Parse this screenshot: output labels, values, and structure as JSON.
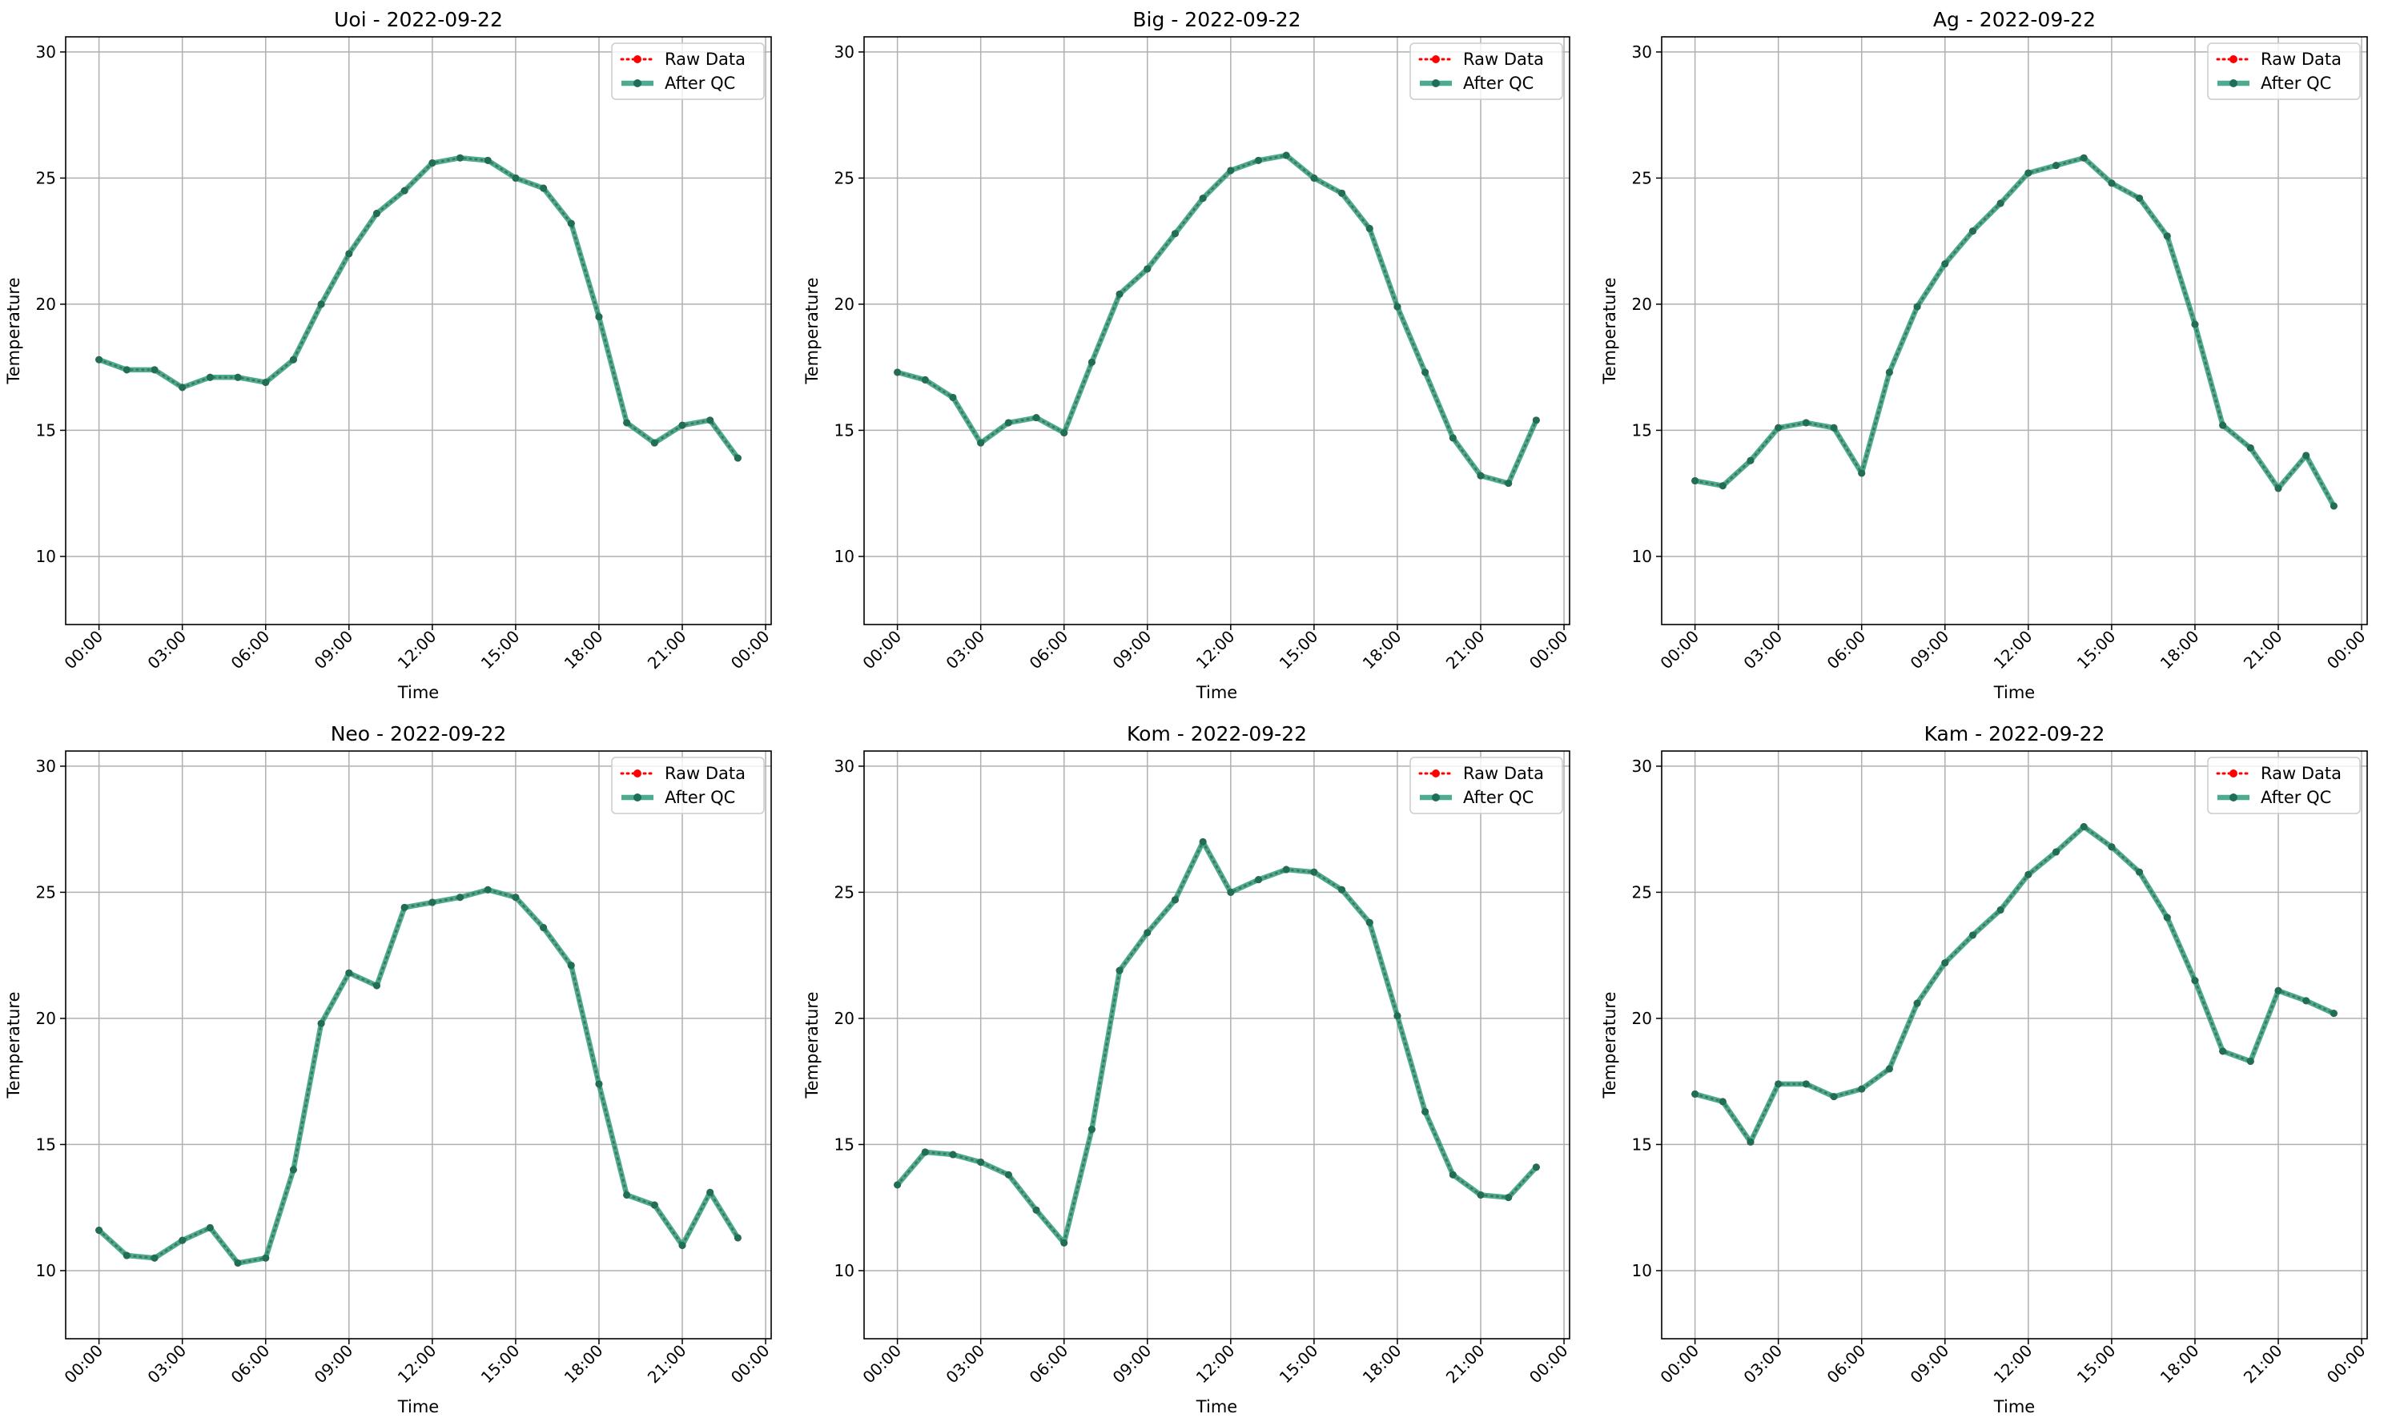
{
  "figure": {
    "colors": {
      "raw": "#ff0000",
      "qc": "#2e9e7c",
      "qc_marker": "#1f6e57",
      "grid": "#b0b0b0",
      "axis": "#000000"
    }
  },
  "chart_data": [
    {
      "type": "line",
      "title": "Uoi - 2022-09-22",
      "xlabel": "Time",
      "ylabel": "Temperature",
      "x_tick_labels": [
        "00:00",
        "03:00",
        "06:00",
        "09:00",
        "12:00",
        "15:00",
        "18:00",
        "21:00",
        "00:00"
      ],
      "y_ticks": [
        10,
        15,
        20,
        25,
        30
      ],
      "xlim_hours": [
        -1.2,
        24.2
      ],
      "ylim": [
        7.3,
        30.6
      ],
      "grid": true,
      "legend": "top-right",
      "x_hours": [
        0,
        1,
        2,
        3,
        4,
        5,
        6,
        7,
        8,
        9,
        10,
        11,
        12,
        13,
        14,
        15,
        16,
        17,
        18,
        19,
        20,
        21,
        22,
        23
      ],
      "series": [
        {
          "name": "Raw Data",
          "values": [
            17.8,
            17.4,
            17.4,
            16.7,
            17.1,
            17.1,
            16.9,
            17.8,
            20.0,
            22.0,
            23.6,
            24.5,
            25.6,
            25.8,
            25.7,
            25.0,
            24.6,
            23.2,
            19.5,
            15.3,
            14.5,
            15.2,
            15.4,
            13.9
          ]
        },
        {
          "name": "After QC",
          "values": [
            17.8,
            17.4,
            17.4,
            16.7,
            17.1,
            17.1,
            16.9,
            17.8,
            20.0,
            22.0,
            23.6,
            24.5,
            25.6,
            25.8,
            25.7,
            25.0,
            24.6,
            23.2,
            19.5,
            15.3,
            14.5,
            15.2,
            15.4,
            13.9
          ]
        }
      ]
    },
    {
      "type": "line",
      "title": "Big - 2022-09-22",
      "xlabel": "Time",
      "ylabel": "Temperature",
      "x_tick_labels": [
        "00:00",
        "03:00",
        "06:00",
        "09:00",
        "12:00",
        "15:00",
        "18:00",
        "21:00",
        "00:00"
      ],
      "y_ticks": [
        10,
        15,
        20,
        25,
        30
      ],
      "xlim_hours": [
        -1.2,
        24.2
      ],
      "ylim": [
        7.3,
        30.6
      ],
      "grid": true,
      "legend": "top-right",
      "x_hours": [
        0,
        1,
        2,
        3,
        4,
        5,
        6,
        7,
        8,
        9,
        10,
        11,
        12,
        13,
        14,
        15,
        16,
        17,
        18,
        19,
        20,
        21,
        22,
        23
      ],
      "series": [
        {
          "name": "Raw Data",
          "values": [
            17.3,
            17.0,
            16.3,
            14.5,
            15.3,
            15.5,
            14.9,
            17.7,
            20.4,
            21.4,
            22.8,
            24.2,
            25.3,
            25.7,
            25.9,
            25.0,
            24.4,
            23.0,
            19.9,
            17.3,
            14.7,
            13.2,
            12.9,
            15.4
          ]
        },
        {
          "name": "After QC",
          "values": [
            17.3,
            17.0,
            16.3,
            14.5,
            15.3,
            15.5,
            14.9,
            17.7,
            20.4,
            21.4,
            22.8,
            24.2,
            25.3,
            25.7,
            25.9,
            25.0,
            24.4,
            23.0,
            19.9,
            17.3,
            14.7,
            13.2,
            12.9,
            15.4
          ]
        }
      ]
    },
    {
      "type": "line",
      "title": "Ag - 2022-09-22",
      "xlabel": "Time",
      "ylabel": "Temperature",
      "x_tick_labels": [
        "00:00",
        "03:00",
        "06:00",
        "09:00",
        "12:00",
        "15:00",
        "18:00",
        "21:00",
        "00:00"
      ],
      "y_ticks": [
        10,
        15,
        20,
        25,
        30
      ],
      "xlim_hours": [
        -1.2,
        24.2
      ],
      "ylim": [
        7.3,
        30.6
      ],
      "grid": true,
      "legend": "top-right",
      "x_hours": [
        0,
        1,
        2,
        3,
        4,
        5,
        6,
        7,
        8,
        9,
        10,
        11,
        12,
        13,
        14,
        15,
        16,
        17,
        18,
        19,
        20,
        21,
        22,
        23
      ],
      "series": [
        {
          "name": "Raw Data",
          "values": [
            13.0,
            12.8,
            13.8,
            15.1,
            15.3,
            15.1,
            13.3,
            17.3,
            19.9,
            21.6,
            22.9,
            24.0,
            25.2,
            25.5,
            25.8,
            24.8,
            24.2,
            22.7,
            19.2,
            15.2,
            14.3,
            12.7,
            14.0,
            12.0
          ]
        },
        {
          "name": "After QC",
          "values": [
            13.0,
            12.8,
            13.8,
            15.1,
            15.3,
            15.1,
            13.3,
            17.3,
            19.9,
            21.6,
            22.9,
            24.0,
            25.2,
            25.5,
            25.8,
            24.8,
            24.2,
            22.7,
            19.2,
            15.2,
            14.3,
            12.7,
            14.0,
            12.0
          ]
        }
      ]
    },
    {
      "type": "line",
      "title": "Neo - 2022-09-22",
      "xlabel": "Time",
      "ylabel": "Temperature",
      "x_tick_labels": [
        "00:00",
        "03:00",
        "06:00",
        "09:00",
        "12:00",
        "15:00",
        "18:00",
        "21:00",
        "00:00"
      ],
      "y_ticks": [
        10,
        15,
        20,
        25,
        30
      ],
      "xlim_hours": [
        -1.2,
        24.2
      ],
      "ylim": [
        7.3,
        30.6
      ],
      "grid": true,
      "legend": "top-right",
      "x_hours": [
        0,
        1,
        2,
        3,
        4,
        5,
        6,
        7,
        8,
        9,
        10,
        11,
        12,
        13,
        14,
        15,
        16,
        17,
        18,
        19,
        20,
        21,
        22,
        23
      ],
      "series": [
        {
          "name": "Raw Data",
          "values": [
            11.6,
            10.6,
            10.5,
            11.2,
            11.7,
            10.3,
            10.5,
            14.0,
            19.8,
            21.8,
            21.3,
            24.4,
            24.6,
            24.8,
            25.1,
            24.8,
            23.6,
            22.1,
            17.4,
            13.0,
            12.6,
            11.0,
            13.1,
            11.3
          ]
        },
        {
          "name": "After QC",
          "values": [
            11.6,
            10.6,
            10.5,
            11.2,
            11.7,
            10.3,
            10.5,
            14.0,
            19.8,
            21.8,
            21.3,
            24.4,
            24.6,
            24.8,
            25.1,
            24.8,
            23.6,
            22.1,
            17.4,
            13.0,
            12.6,
            11.0,
            13.1,
            11.3
          ]
        }
      ]
    },
    {
      "type": "line",
      "title": "Kom - 2022-09-22",
      "xlabel": "Time",
      "ylabel": "Temperature",
      "x_tick_labels": [
        "00:00",
        "03:00",
        "06:00",
        "09:00",
        "12:00",
        "15:00",
        "18:00",
        "21:00",
        "00:00"
      ],
      "y_ticks": [
        10,
        15,
        20,
        25,
        30
      ],
      "xlim_hours": [
        -1.2,
        24.2
      ],
      "ylim": [
        7.3,
        30.6
      ],
      "grid": true,
      "legend": "top-right",
      "x_hours": [
        0,
        1,
        2,
        3,
        4,
        5,
        6,
        7,
        8,
        9,
        10,
        11,
        12,
        13,
        14,
        15,
        16,
        17,
        18,
        19,
        20,
        21,
        22,
        23
      ],
      "series": [
        {
          "name": "Raw Data",
          "values": [
            13.4,
            14.7,
            14.6,
            14.3,
            13.8,
            12.4,
            11.1,
            15.6,
            21.9,
            23.4,
            24.7,
            27.0,
            25.0,
            25.5,
            25.9,
            25.8,
            25.1,
            23.8,
            20.1,
            16.3,
            13.8,
            13.0,
            12.9,
            14.1
          ]
        },
        {
          "name": "After QC",
          "values": [
            13.4,
            14.7,
            14.6,
            14.3,
            13.8,
            12.4,
            11.1,
            15.6,
            21.9,
            23.4,
            24.7,
            27.0,
            25.0,
            25.5,
            25.9,
            25.8,
            25.1,
            23.8,
            20.1,
            16.3,
            13.8,
            13.0,
            12.9,
            14.1
          ]
        }
      ]
    },
    {
      "type": "line",
      "title": "Kam - 2022-09-22",
      "xlabel": "Time",
      "ylabel": "Temperature",
      "x_tick_labels": [
        "00:00",
        "03:00",
        "06:00",
        "09:00",
        "12:00",
        "15:00",
        "18:00",
        "21:00",
        "00:00"
      ],
      "y_ticks": [
        10,
        15,
        20,
        25,
        30
      ],
      "xlim_hours": [
        -1.2,
        24.2
      ],
      "ylim": [
        7.3,
        30.6
      ],
      "grid": true,
      "legend": "top-right",
      "x_hours": [
        0,
        1,
        2,
        3,
        4,
        5,
        6,
        7,
        8,
        9,
        10,
        11,
        12,
        13,
        14,
        15,
        16,
        17,
        18,
        19,
        20,
        21,
        22,
        23
      ],
      "series": [
        {
          "name": "Raw Data",
          "values": [
            17.0,
            16.7,
            15.1,
            17.4,
            17.4,
            16.9,
            17.2,
            18.0,
            20.6,
            22.2,
            23.3,
            24.3,
            25.7,
            26.6,
            27.6,
            26.8,
            25.8,
            24.0,
            21.5,
            18.7,
            18.3,
            21.1,
            20.7,
            20.2
          ]
        },
        {
          "name": "After QC",
          "values": [
            17.0,
            16.7,
            15.1,
            17.4,
            17.4,
            16.9,
            17.2,
            18.0,
            20.6,
            22.2,
            23.3,
            24.3,
            25.7,
            26.6,
            27.6,
            26.8,
            25.8,
            24.0,
            21.5,
            18.7,
            18.3,
            21.1,
            20.7,
            20.2
          ]
        }
      ]
    }
  ]
}
